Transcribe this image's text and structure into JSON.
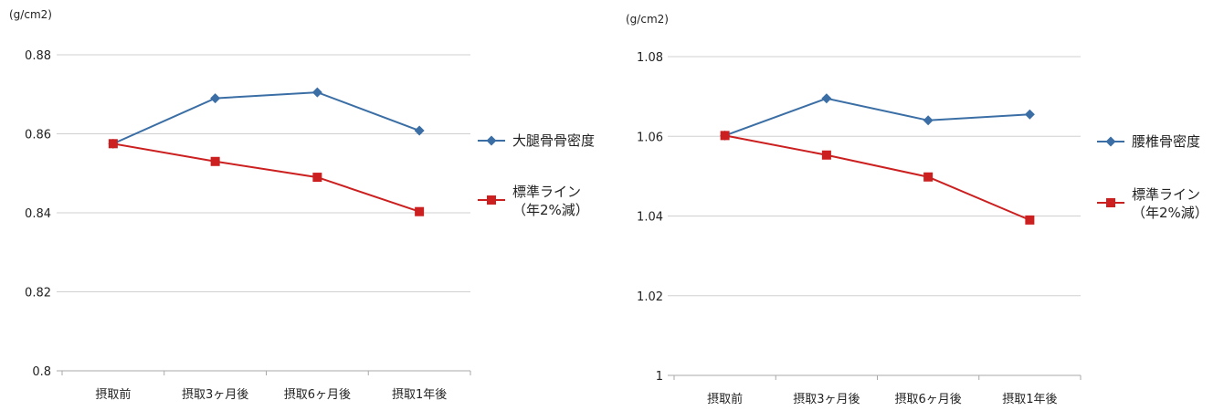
{
  "chart_data": [
    {
      "type": "line",
      "unit_label": "(g/cm2)",
      "categories": [
        "摂取前",
        "摂取3ヶ月後",
        "摂取6ヶ月後",
        "摂取1年後"
      ],
      "yticks": [
        "0.8",
        "0.82",
        "0.84",
        "0.86",
        "0.88"
      ],
      "ylim": [
        0.8,
        0.88
      ],
      "legend_position": "right",
      "series": [
        {
          "name": "大腿骨骨密度",
          "color": "#3a6ea5",
          "marker": "diamond",
          "values": [
            0.8575,
            0.869,
            0.8705,
            0.8608
          ]
        },
        {
          "name": "標準ライン\n（年2%減）",
          "name_lines": [
            "標準ライン",
            "（年2%減）"
          ],
          "color": "#cc1f1f",
          "marker": "square",
          "values": [
            0.8575,
            0.853,
            0.849,
            0.8403
          ]
        }
      ]
    },
    {
      "type": "line",
      "unit_label": "(g/cm2)",
      "categories": [
        "摂取前",
        "摂取3ヶ月後",
        "摂取6ヶ月後",
        "摂取1年後"
      ],
      "yticks": [
        "1",
        "1.02",
        "1.04",
        "1.06",
        "1.08"
      ],
      "ylim": [
        1.0,
        1.08
      ],
      "legend_position": "right",
      "series": [
        {
          "name": "腰椎骨密度",
          "color": "#3a6ea5",
          "marker": "diamond",
          "values": [
            1.0602,
            1.0695,
            1.064,
            1.0655
          ]
        },
        {
          "name": "標準ライン\n（年2%減）",
          "name_lines": [
            "標準ライン",
            "（年2%減）"
          ],
          "color": "#cc1f1f",
          "marker": "square",
          "values": [
            1.0602,
            1.0553,
            1.0498,
            1.039
          ]
        }
      ]
    }
  ]
}
